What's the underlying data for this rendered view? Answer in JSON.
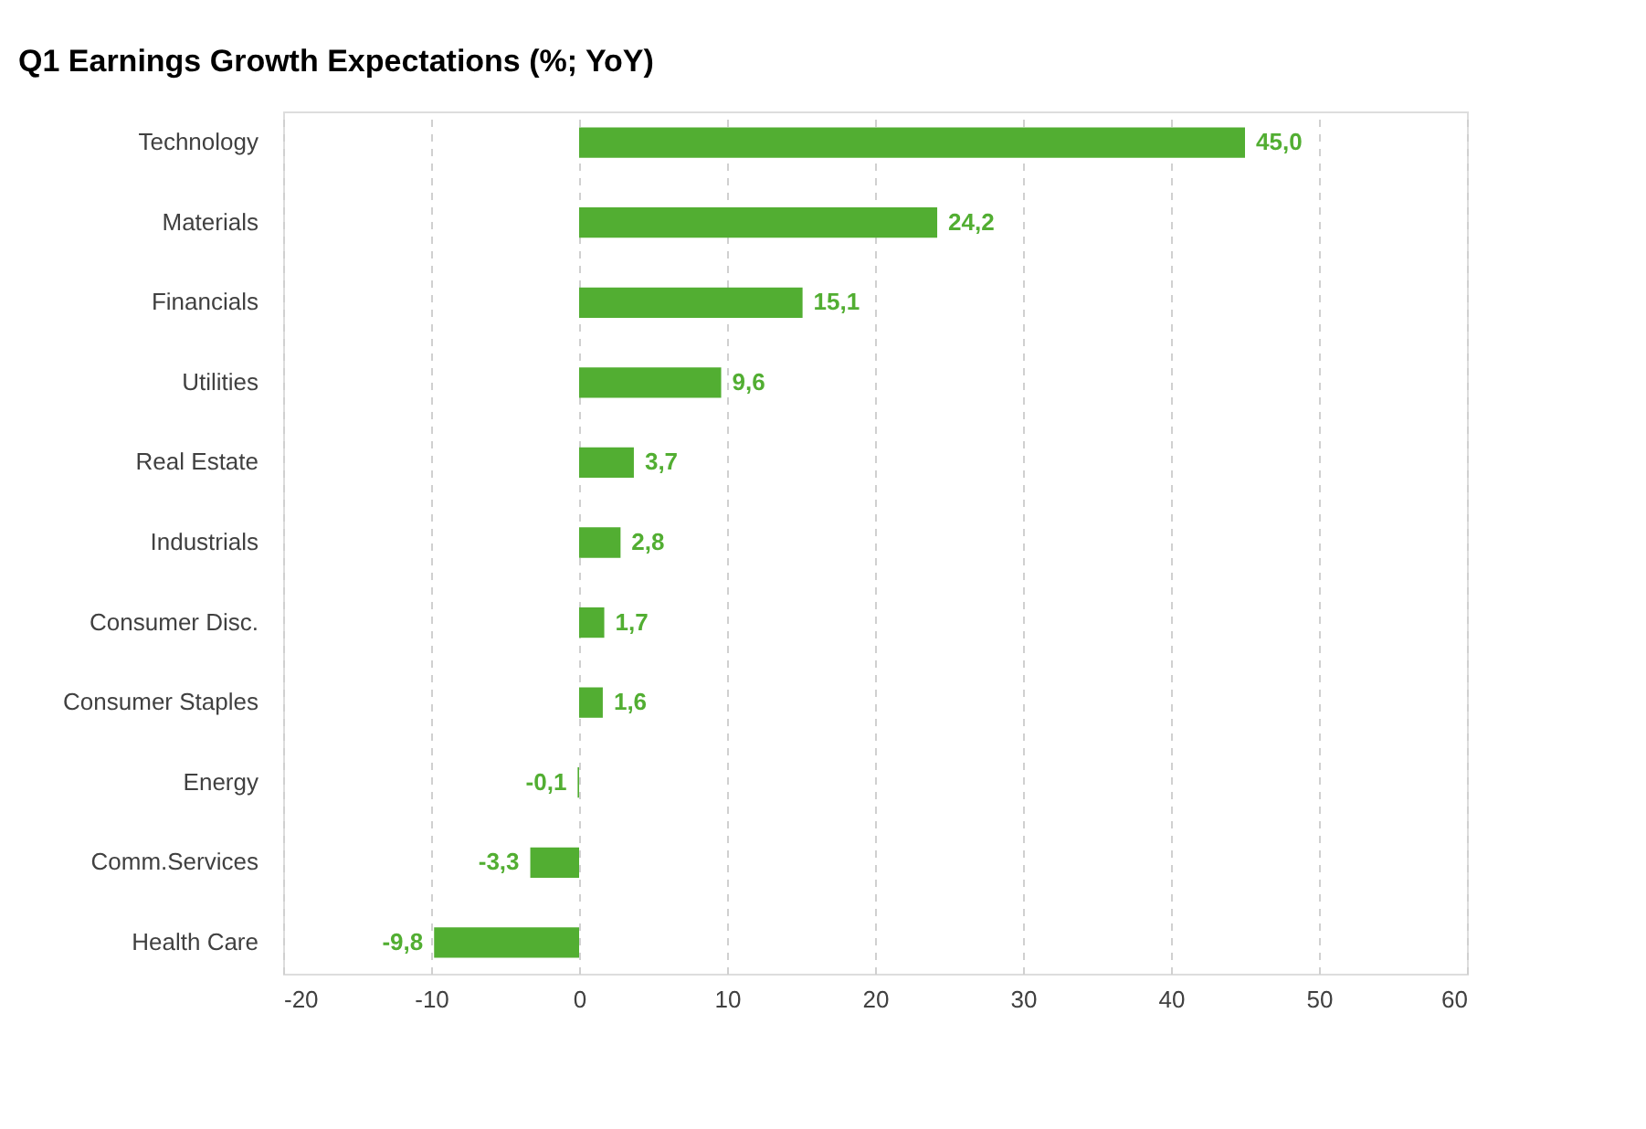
{
  "chart_data": {
    "type": "bar",
    "orientation": "horizontal",
    "title": "Q1 Earnings Growth Expectations (%; YoY)",
    "categories": [
      "Technology",
      "Materials",
      "Financials",
      "Utilities",
      "Real Estate",
      "Industrials",
      "Consumer Disc.",
      "Consumer Staples",
      "Energy",
      "Comm.Services",
      "Health Care"
    ],
    "values": [
      45.0,
      24.2,
      15.1,
      9.6,
      3.7,
      2.8,
      1.7,
      1.6,
      -0.1,
      -3.3,
      -9.8
    ],
    "value_labels": [
      "45,0",
      "24,2",
      "15,1",
      "9,6",
      "3,7",
      "2,8",
      "1,7",
      "1,6",
      "-0,1",
      "-3,3",
      "-9,8"
    ],
    "color": "#52ae32",
    "xlim": [
      -20,
      60
    ],
    "xticks": [
      -20,
      -10,
      0,
      10,
      20,
      30,
      40,
      50,
      60
    ],
    "grid": "x"
  }
}
